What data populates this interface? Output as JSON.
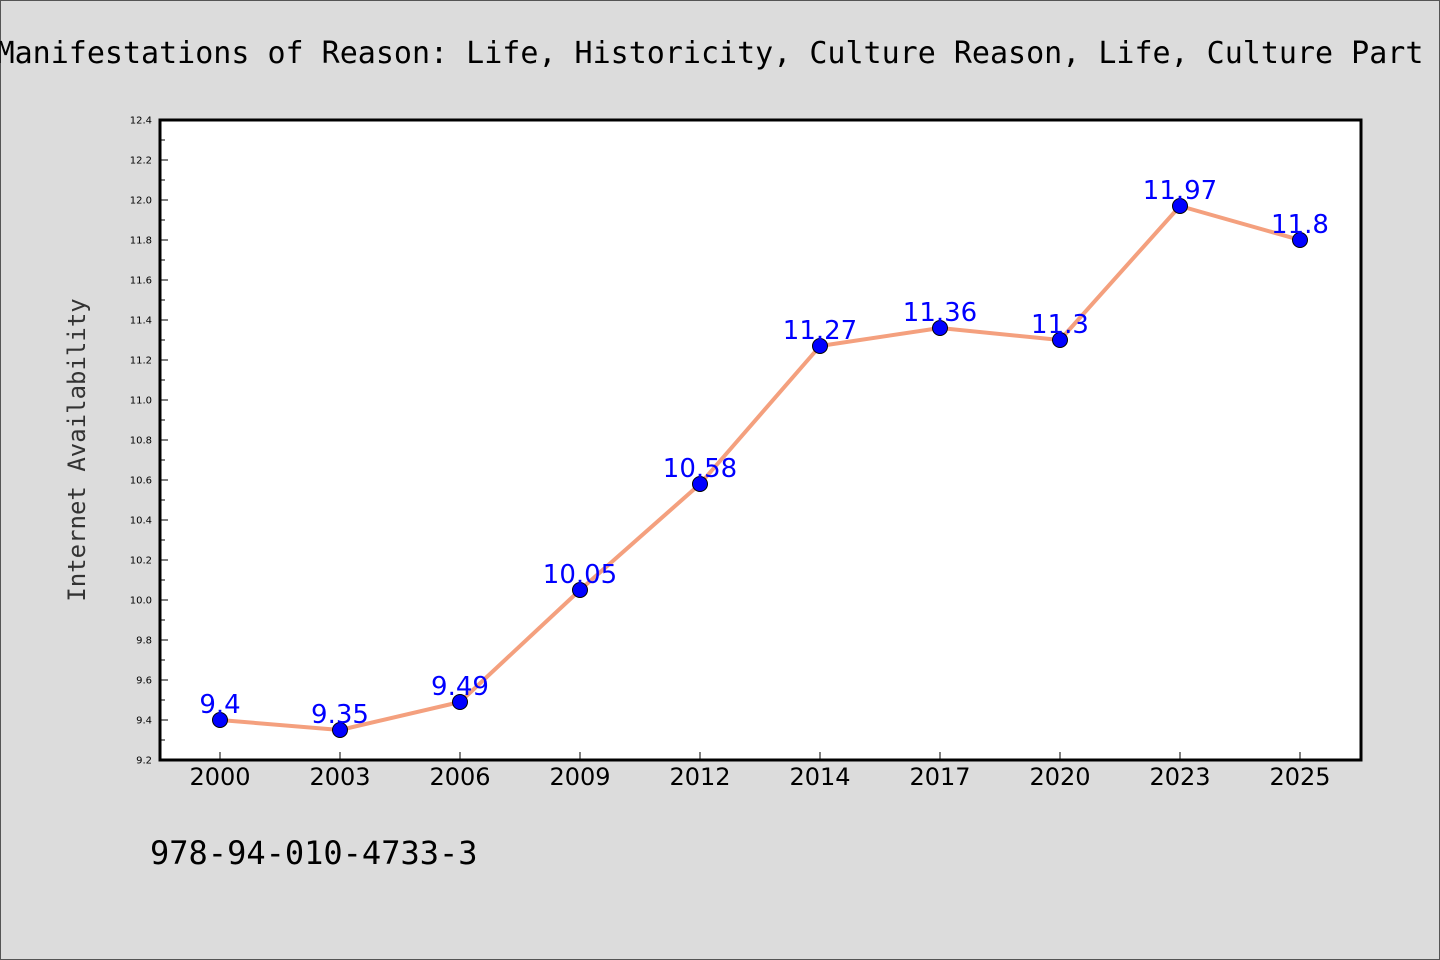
{
  "chart_data": {
    "type": "line",
    "title": "Manifestations of Reason: Life, Historicity, Culture Reason, Life, Culture Part",
    "xlabel": "",
    "ylabel": "Internet Availability",
    "categories": [
      "2000",
      "2003",
      "2006",
      "2009",
      "2012",
      "2014",
      "2017",
      "2020",
      "2023",
      "2025"
    ],
    "series": [
      {
        "values": [
          9.4,
          9.35,
          9.49,
          10.05,
          10.58,
          11.27,
          11.36,
          11.3,
          11.97,
          11.8
        ],
        "data_labels": [
          "9.4",
          "9.35",
          "9.49",
          "10.05",
          "10.58",
          "11.27",
          "11.36",
          "11.3",
          "11.97",
          "11.8"
        ]
      }
    ],
    "ylim": [
      9.2,
      12.4
    ],
    "yticks": [
      "9.2",
      "9.4",
      "9.6",
      "9.8",
      "10.0",
      "10.2",
      "10.4",
      "10.6",
      "10.8",
      "11.0",
      "11.2",
      "11.4",
      "11.6",
      "11.8",
      "12.0",
      "12.2",
      "12.4"
    ],
    "grid": false,
    "legend": "none",
    "colors": {
      "line": "#f4a07e",
      "marker": "#0000ff",
      "data_label": "#0000ff",
      "background": "#dcdcdc",
      "plot_area": "#ffffff"
    }
  },
  "footer": {
    "isbn": "978-94-010-4733-3"
  }
}
